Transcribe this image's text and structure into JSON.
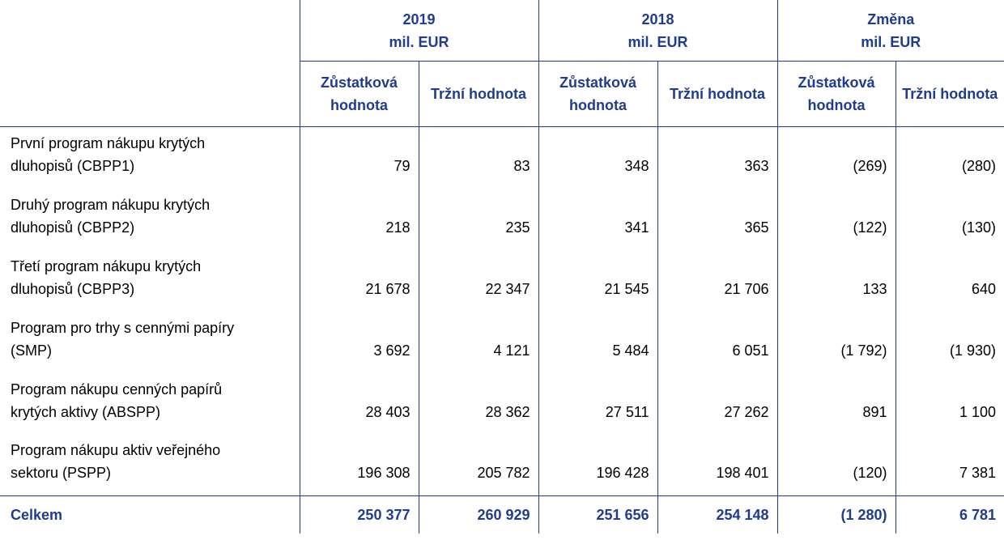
{
  "table": {
    "groups": [
      {
        "title": "2019",
        "unit": "mil. EUR"
      },
      {
        "title": "2018",
        "unit": "mil. EUR"
      },
      {
        "title": "Změna",
        "unit": "mil. EUR"
      }
    ],
    "subheaders": [
      "Zůstatková hodnota",
      "Tržní hodnota",
      "Zůstatková hodnota",
      "Tržní hodnota",
      "Zůstatková hodnota",
      "Tržní hodnota"
    ],
    "rows": [
      {
        "label": [
          "První program nákupu krytých",
          "dluhopisů (CBPP1)"
        ],
        "values": [
          "79",
          "83",
          "348",
          "363",
          "(269)",
          "(280)"
        ]
      },
      {
        "label": [
          "Druhý program nákupu krytých",
          "dluhopisů (CBPP2)"
        ],
        "values": [
          "218",
          "235",
          "341",
          "365",
          "(122)",
          "(130)"
        ]
      },
      {
        "label": [
          "Třetí program nákupu krytých",
          "dluhopisů (CBPP3)"
        ],
        "values": [
          "21 678",
          "22 347",
          "21 545",
          "21 706",
          "133",
          "640"
        ]
      },
      {
        "label": [
          "Program pro trhy s cennými papíry",
          "(SMP)"
        ],
        "values": [
          "3 692",
          "4 121",
          "5 484",
          "6 051",
          "(1 792)",
          "(1 930)"
        ]
      },
      {
        "label": [
          "Program nákupu cenných papírů",
          "krytých aktivy (ABSPP)"
        ],
        "values": [
          "28 403",
          "28 362",
          "27 511",
          "27 262",
          "891",
          "1 100"
        ]
      },
      {
        "label": [
          "Program nákupu aktiv veřejného",
          "sektoru (PSPP)"
        ],
        "values": [
          "196 308",
          "205 782",
          "196 428",
          "198 401",
          "(120)",
          "7 381"
        ]
      }
    ],
    "total": {
      "label": "Celkem",
      "values": [
        "250 377",
        "260 929",
        "251 656",
        "254 148",
        "(1 280)",
        "6 781"
      ]
    }
  }
}
